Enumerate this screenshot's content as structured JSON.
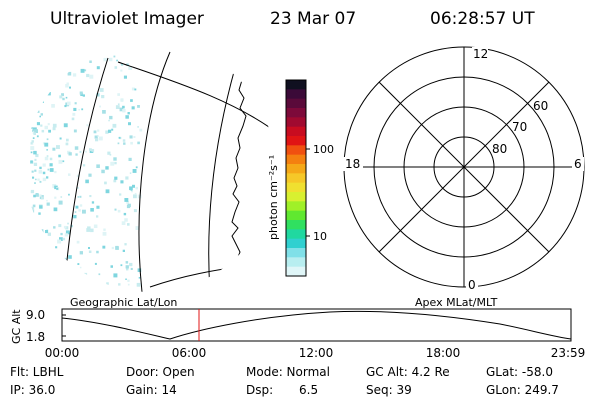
{
  "header": {
    "instrument": "Ultraviolet Imager",
    "date": "23 Mar 07",
    "time": "06:28:57 UT"
  },
  "colorbar": {
    "label": "photon cm⁻²s⁻¹",
    "ticks": [
      "100",
      "10"
    ],
    "colors": [
      "#101020",
      "#3b0a38",
      "#5a0a3a",
      "#7d0a3a",
      "#a00a30",
      "#c80c20",
      "#e01414",
      "#f05010",
      "#f48010",
      "#f5a818",
      "#f6c828",
      "#f0e030",
      "#d8f030",
      "#a0f028",
      "#60e830",
      "#30e060",
      "#20d8a0",
      "#30d0d0",
      "#80e0e8",
      "#b8eef0",
      "#e0f6f8"
    ]
  },
  "left_panel": {
    "caption": "Geographic Lat/Lon"
  },
  "right_panel": {
    "caption": "Apex MLat/MLT",
    "lat_labels": [
      "80",
      "70",
      "60"
    ],
    "mlt_labels": [
      "12",
      "18",
      "6",
      "0"
    ]
  },
  "altitude_plot": {
    "ylabel": "GC Alt",
    "yticks": [
      "9.0",
      "1.8"
    ],
    "xticks": [
      "00:00",
      "06:00",
      "12:00",
      "18:00",
      "23:59"
    ]
  },
  "footer": {
    "flt": "Flt: LBHL",
    "ip": "IP: 36.0",
    "door": "Door: Open",
    "gain": "Gain: 14",
    "mode": "Mode: Normal",
    "dsp_label": "Dsp:",
    "dsp_value": "6.5",
    "gc_alt": "GC Alt: 4.2 Re",
    "seq": "Seq: 39",
    "glat": "GLat: -58.0",
    "glon": "GLon: 249.7"
  }
}
